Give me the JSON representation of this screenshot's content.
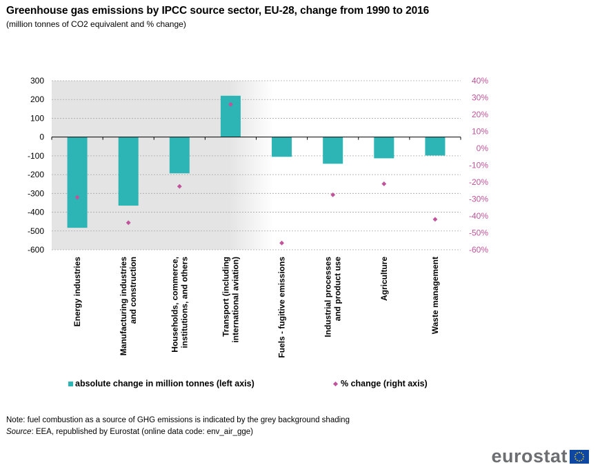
{
  "title": "Greenhouse gas emissions by IPCC source sector, EU-28, change from 1990 to 2016",
  "subtitle": "(million tonnes of CO2  equivalent  and % change)",
  "chart_data": {
    "type": "bar",
    "categories": [
      [
        "Energy industries"
      ],
      [
        "Manufacturing industries",
        "and construction"
      ],
      [
        "Households, commerce,",
        "institutions, and others"
      ],
      [
        "Transport (including",
        "international aviation)"
      ],
      [
        "Fuels - fugitive emissions"
      ],
      [
        "Industrial processes",
        "and product use"
      ],
      [
        "Agriculture"
      ],
      [
        "Waste management"
      ]
    ],
    "series": [
      {
        "name": "absolute change in million tonnes (left axis)",
        "type": "bar",
        "axis": "left",
        "color": "#2db4b4",
        "values": [
          -483,
          -365,
          -193,
          220,
          -105,
          -142,
          -113,
          -98
        ]
      },
      {
        "name": "% change (right axis)",
        "type": "scatter",
        "axis": "right",
        "color": "#c0539a",
        "values": [
          -29,
          -44,
          -22.5,
          26,
          -56,
          -27.5,
          -21,
          -42
        ]
      }
    ],
    "left_axis": {
      "min": -600,
      "max": 300,
      "step": 100,
      "ticks": [
        "300",
        "200",
        "100",
        "0",
        "-100",
        "-200",
        "-300",
        "-400",
        "-500",
        "-600"
      ]
    },
    "right_axis": {
      "min": -60,
      "max": 40,
      "step": 10,
      "ticks": [
        "40%",
        "30%",
        "20%",
        "10%",
        "0%",
        "-10%",
        "-20%",
        "-30%",
        "-40%",
        "-50%",
        "-60%"
      ]
    },
    "shaded_categories": [
      0,
      1,
      2,
      3
    ],
    "grid": true
  },
  "legend": {
    "bar_label": "absolute change in million tonnes (left axis)",
    "marker_label": "% change (right axis)"
  },
  "footer": {
    "note": "Note: fuel combustion as a source of GHG emissions is indicated by the grey background shading",
    "source_label": "Source",
    "source_text": ": EEA, republished by Eurostat (online data code: env_air_gge)"
  },
  "logo": {
    "text": "eurostat",
    "flag_color": "#0e47a1"
  },
  "colors": {
    "right_axis_text": "#c0539a",
    "shading": "#e4e4e4"
  }
}
